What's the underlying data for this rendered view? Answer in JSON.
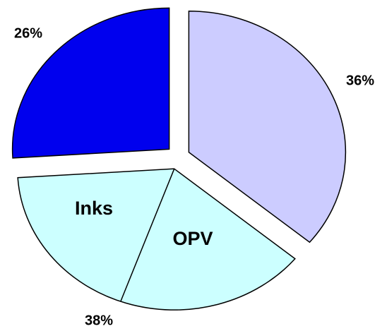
{
  "chart_data": {
    "type": "pie",
    "values": [
      36,
      38,
      26
    ],
    "value_labels": [
      "36%",
      "38%",
      "26%"
    ],
    "colors": [
      "#ccccff",
      "#ccffff",
      "#0000ee"
    ],
    "annotations": [
      "Inks",
      "OPV"
    ]
  }
}
